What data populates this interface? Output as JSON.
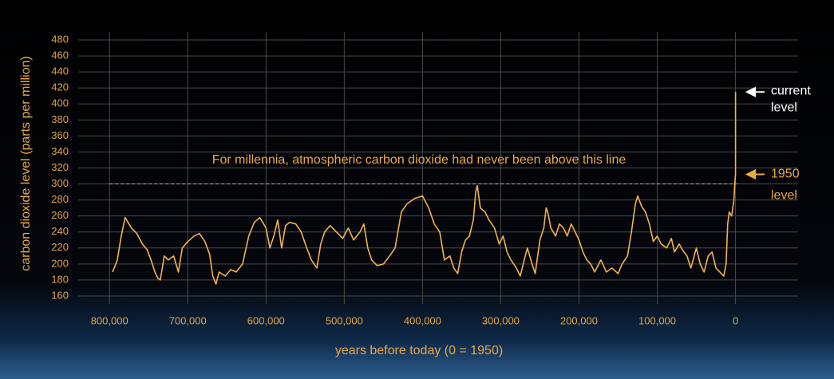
{
  "chart_data": {
    "type": "line",
    "x_label": "years before today (0 = 1950)",
    "y_label": "carbon dioxide level (parts per million)",
    "color": "#f3b24d",
    "xlim": [
      840000,
      -80000
    ],
    "ylim": [
      150,
      490
    ],
    "xticks": [
      {
        "value": 800000,
        "label": "800,000"
      },
      {
        "value": 700000,
        "label": "700,000"
      },
      {
        "value": 600000,
        "label": "600,000"
      },
      {
        "value": 500000,
        "label": "500,000"
      },
      {
        "value": 400000,
        "label": "400,000"
      },
      {
        "value": 300000,
        "label": "300,000"
      },
      {
        "value": 200000,
        "label": "200,000"
      },
      {
        "value": 100000,
        "label": "100,000"
      },
      0
    ],
    "yticks": [
      160,
      180,
      200,
      220,
      240,
      260,
      280,
      300,
      320,
      340,
      360,
      380,
      400,
      420,
      440,
      460,
      480
    ],
    "grid": true,
    "reference_line": {
      "value": 300,
      "label": "For millennia, atmospheric carbon dioxide had never been above this line"
    },
    "current_level_label": [
      "current",
      "level"
    ],
    "level_1950_label": [
      "1950",
      "level"
    ],
    "x": [
      796000,
      790000,
      785000,
      780000,
      772000,
      765000,
      758000,
      752000,
      747000,
      742000,
      738000,
      735000,
      730000,
      725000,
      718000,
      712000,
      707000,
      700000,
      692000,
      685000,
      678000,
      672000,
      668000,
      664000,
      660000,
      652000,
      645000,
      638000,
      630000,
      622000,
      615000,
      608000,
      600000,
      595000,
      590000,
      585000,
      580000,
      575000,
      570000,
      562000,
      555000,
      548000,
      542000,
      535000,
      530000,
      525000,
      518000,
      510000,
      502000,
      495000,
      488000,
      480000,
      475000,
      470000,
      465000,
      458000,
      450000,
      442000,
      435000,
      427000,
      420000,
      410000,
      400000,
      392000,
      385000,
      378000,
      372000,
      365000,
      360000,
      355000,
      350000,
      345000,
      340000,
      335000,
      332000,
      330000,
      326000,
      320000,
      315000,
      308000,
      302000,
      297000,
      292000,
      287000,
      280000,
      275000,
      270000,
      266000,
      260000,
      256000,
      250000,
      245000,
      242000,
      240000,
      236000,
      230000,
      225000,
      220000,
      215000,
      210000,
      205000,
      200000,
      195000,
      190000,
      185000,
      180000,
      172000,
      165000,
      158000,
      150000,
      145000,
      138000,
      133000,
      128000,
      125000,
      120000,
      115000,
      110000,
      105000,
      100000,
      95000,
      88000,
      82000,
      78000,
      72000,
      68000,
      62000,
      57000,
      50000,
      45000,
      40000,
      35000,
      30000,
      25000,
      20000,
      15000,
      12000,
      10000,
      8000,
      5000,
      2000,
      1000,
      0,
      -70
    ],
    "values": [
      190,
      205,
      235,
      258,
      245,
      238,
      225,
      218,
      205,
      190,
      182,
      180,
      210,
      205,
      210,
      190,
      220,
      228,
      235,
      238,
      228,
      212,
      185,
      175,
      190,
      185,
      193,
      190,
      200,
      235,
      252,
      258,
      245,
      220,
      235,
      255,
      220,
      248,
      252,
      250,
      240,
      220,
      205,
      195,
      225,
      240,
      248,
      240,
      232,
      245,
      230,
      240,
      250,
      220,
      205,
      198,
      200,
      210,
      220,
      265,
      275,
      282,
      285,
      270,
      250,
      240,
      205,
      210,
      195,
      188,
      215,
      230,
      235,
      255,
      290,
      298,
      270,
      265,
      255,
      245,
      225,
      235,
      215,
      205,
      195,
      185,
      205,
      220,
      200,
      188,
      230,
      245,
      270,
      265,
      245,
      235,
      250,
      245,
      235,
      250,
      240,
      230,
      215,
      205,
      200,
      190,
      205,
      190,
      195,
      188,
      200,
      210,
      240,
      275,
      285,
      272,
      265,
      250,
      228,
      235,
      225,
      220,
      232,
      215,
      225,
      218,
      210,
      195,
      220,
      200,
      190,
      210,
      215,
      195,
      190,
      185,
      200,
      250,
      265,
      260,
      280,
      300,
      312,
      415
    ]
  }
}
